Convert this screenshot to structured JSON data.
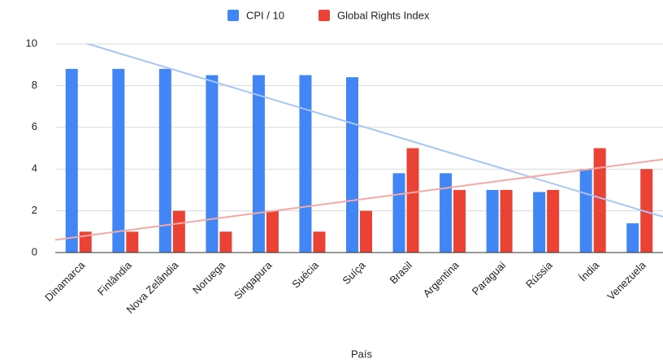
{
  "chart_data": {
    "type": "bar",
    "x_label": "País",
    "categories": [
      "Dinamarca",
      "Finlândia",
      "Nova Zelândia",
      "Noruega",
      "Singapura",
      "Suécia",
      "Suíça",
      "Brasil",
      "Argentina",
      "Paraguai",
      "Rússia",
      "Índia",
      "Venezuela"
    ],
    "series": [
      {
        "name": "CPI / 10",
        "color": "#4285f4",
        "trendline_color": "#a9c5f8",
        "values": [
          8.8,
          8.8,
          8.8,
          8.5,
          8.5,
          8.5,
          8.4,
          3.8,
          3.8,
          3.0,
          2.9,
          4.0,
          1.4
        ]
      },
      {
        "name": "Global Rights Index",
        "color": "#ea4335",
        "trendline_color": "#f4aaa4",
        "values": [
          1,
          1,
          2,
          1,
          2,
          1,
          2,
          5,
          3,
          3,
          3,
          5,
          4
        ]
      }
    ],
    "ylim": [
      0,
      10
    ],
    "yticks": [
      0,
      2,
      4,
      6,
      8,
      10
    ],
    "grid": true,
    "trendline": true,
    "legend": "top"
  }
}
